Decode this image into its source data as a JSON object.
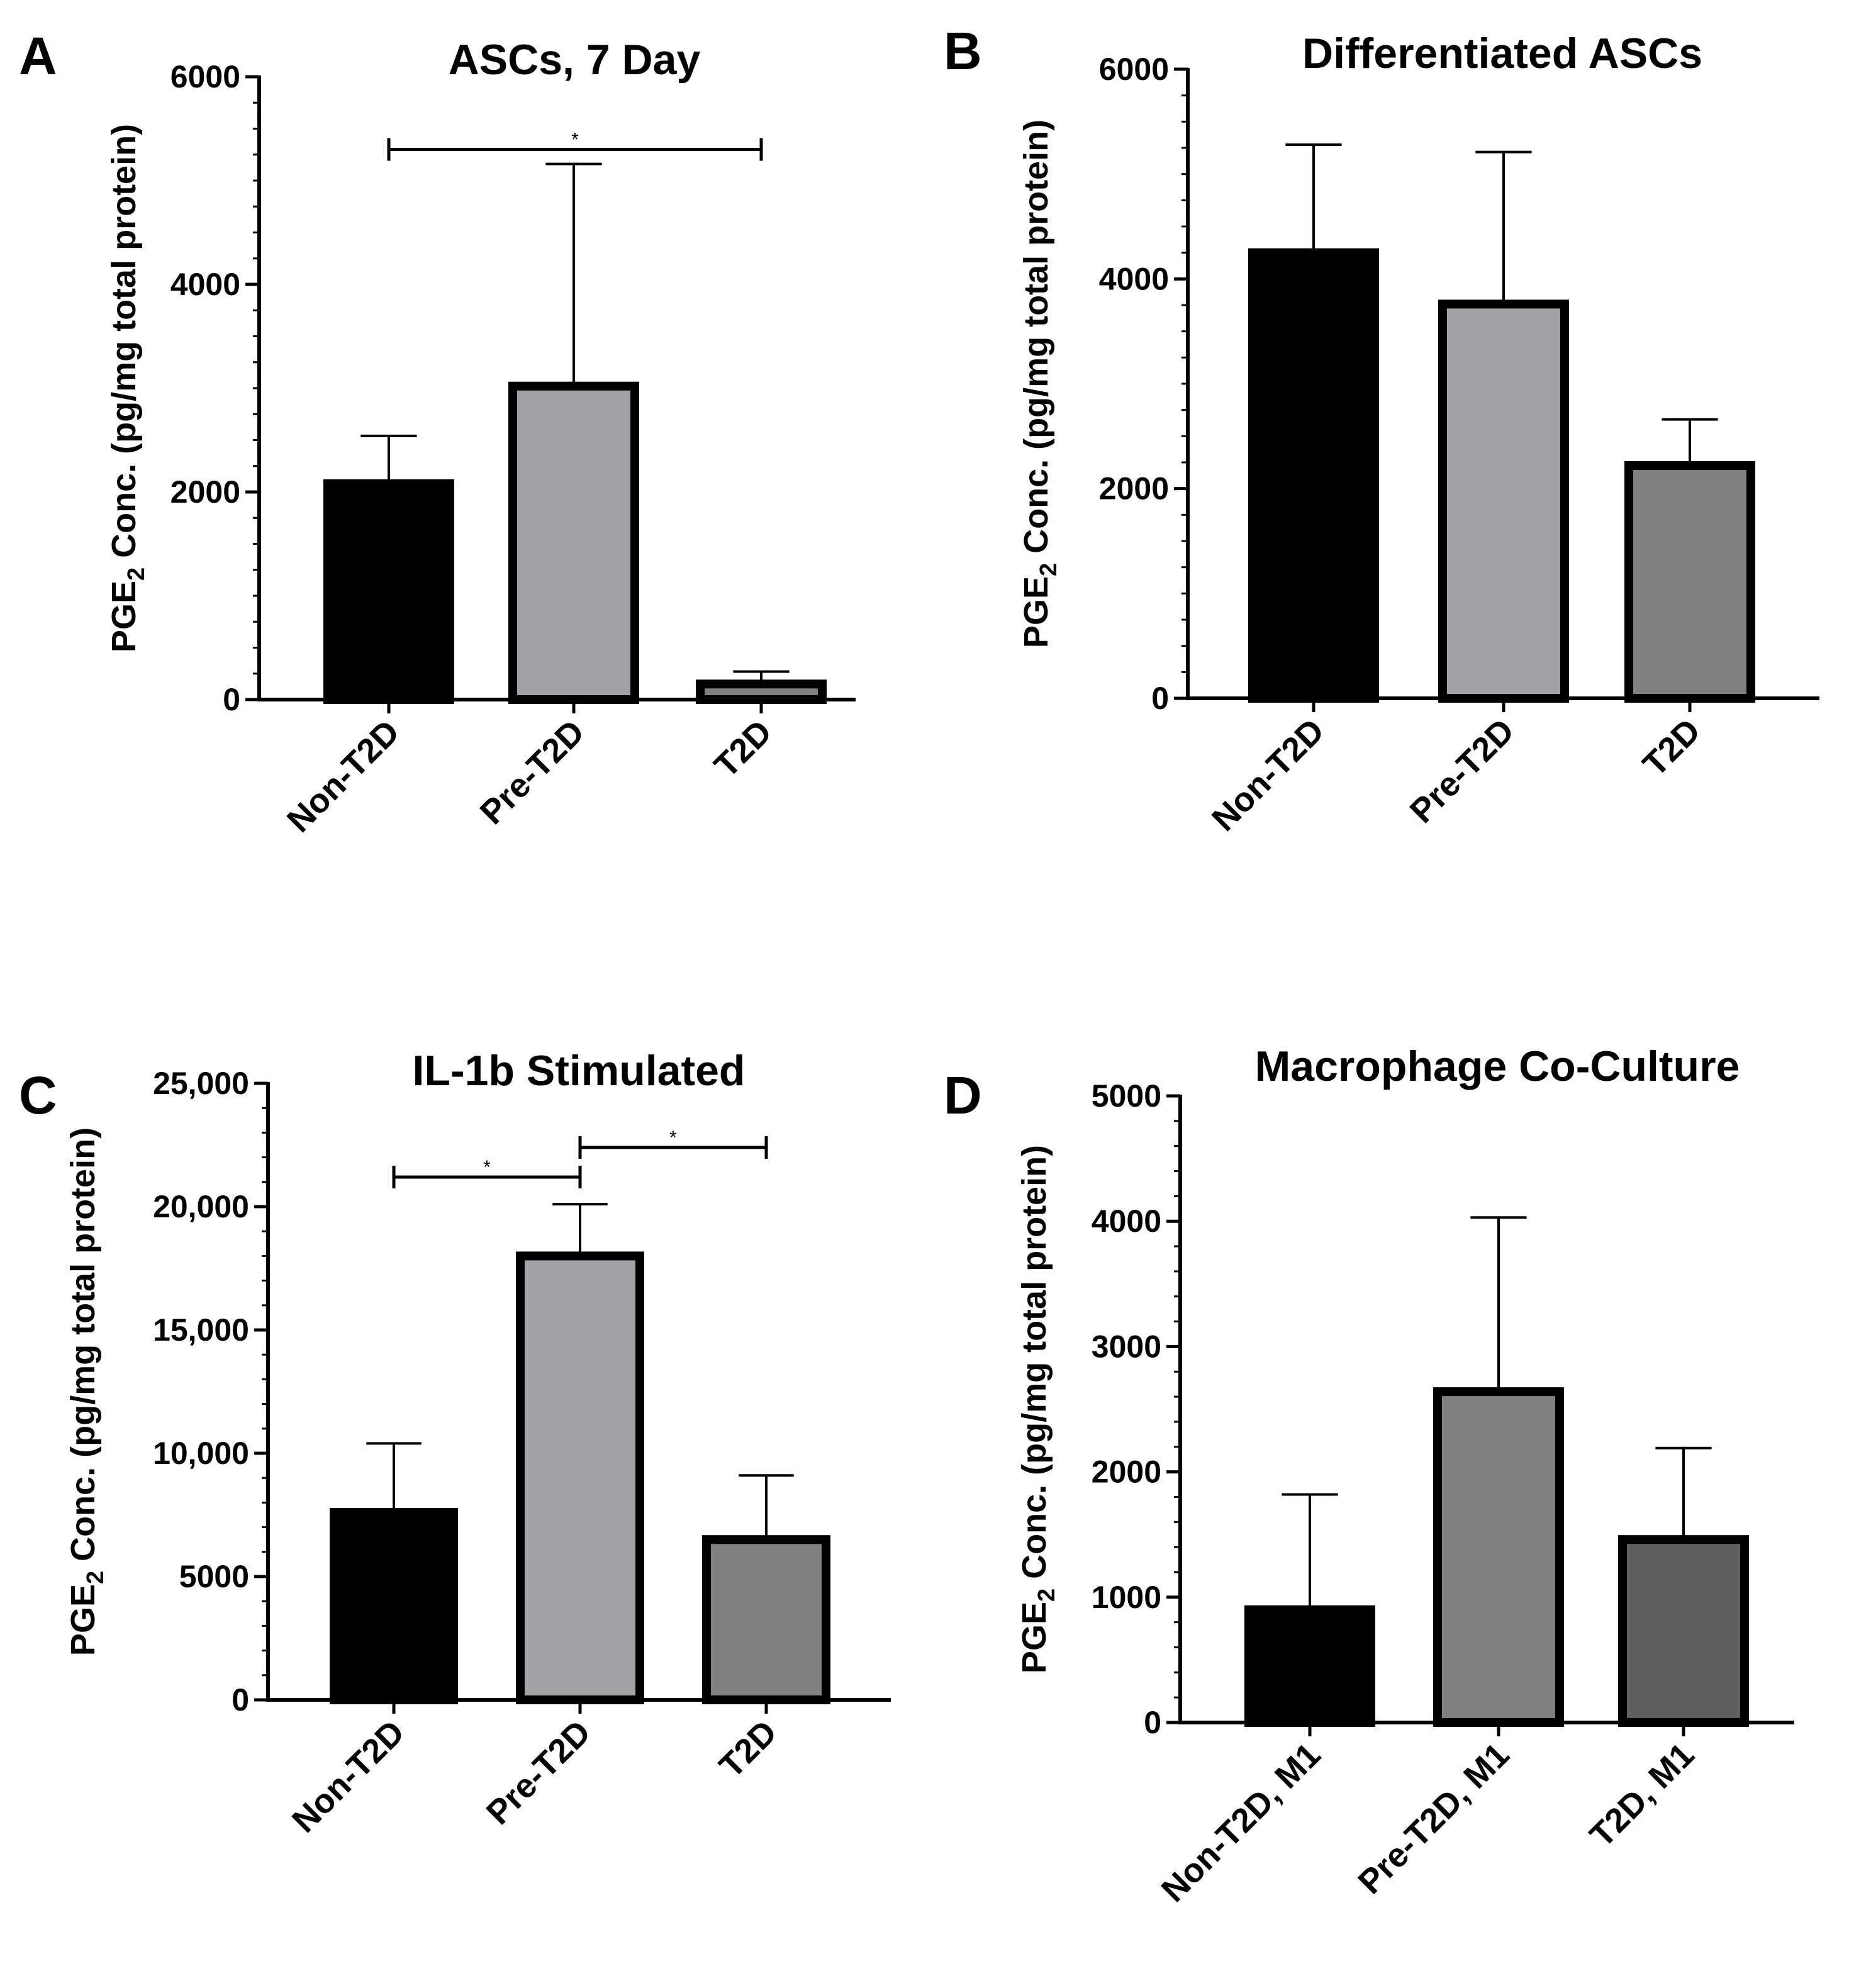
{
  "chart_data": [
    {
      "panel": "A",
      "type": "bar",
      "title": "ASCs, 7 Day",
      "ylabel_main": "PGE",
      "ylabel_sub": "2",
      "ylabel_rest": " Conc. (pg/mg total protein)",
      "categories": [
        "Non-T2D",
        "Pre-T2D",
        "T2D"
      ],
      "values": [
        2080,
        3020,
        150
      ],
      "errors": [
        460,
        2140,
        120
      ],
      "fill_colors": [
        "#000000",
        "#a2a2a6",
        "#808080"
      ],
      "ylim": [
        0,
        6000
      ],
      "ticks": [
        0,
        2000,
        4000,
        6000
      ],
      "tick_labels": [
        "0",
        "2000",
        "4000",
        "6000"
      ],
      "minor_step": 250,
      "significance": [
        {
          "from": 0,
          "to": 2,
          "y": 5300,
          "label": "*"
        }
      ]
    },
    {
      "panel": "B",
      "type": "bar",
      "title": "Differentiated ASCs",
      "ylabel_main": "PGE",
      "ylabel_sub": "2",
      "ylabel_rest": " Conc. (pg/mg total protein)",
      "categories": [
        "Non-T2D",
        "Pre-T2D",
        "T2D"
      ],
      "values": [
        4250,
        3760,
        2220
      ],
      "errors": [
        1030,
        1450,
        440
      ],
      "fill_colors": [
        "#000000",
        "#a2a2a6",
        "#808080"
      ],
      "ylim": [
        0,
        6000
      ],
      "ticks": [
        0,
        2000,
        4000,
        6000
      ],
      "tick_labels": [
        "0",
        "2000",
        "4000",
        "6000"
      ],
      "minor_step": 250,
      "significance": []
    },
    {
      "panel": "C",
      "type": "bar",
      "title": "IL-1b Stimulated",
      "ylabel_main": "PGE",
      "ylabel_sub": "2",
      "ylabel_rest": " Conc. (pg/mg total protein)",
      "categories": [
        "Non-T2D",
        "Pre-T2D",
        "T2D"
      ],
      "values": [
        7600,
        18000,
        6500
      ],
      "errors": [
        2800,
        2100,
        2600
      ],
      "fill_colors": [
        "#000000",
        "#a2a2a6",
        "#808080"
      ],
      "ylim": [
        0,
        25000
      ],
      "ticks": [
        0,
        5000,
        10000,
        15000,
        20000,
        25000
      ],
      "tick_labels": [
        "0",
        "5000",
        "10,000",
        "15,000",
        "20,000",
        "25,000"
      ],
      "minor_step": 1000,
      "significance": [
        {
          "from": 0,
          "to": 1,
          "y": 21200,
          "label": "*"
        },
        {
          "from": 1,
          "to": 2,
          "y": 22400,
          "label": "*"
        }
      ]
    },
    {
      "panel": "D",
      "type": "bar",
      "title": "Macrophage Co-Culture",
      "ylabel_main": "PGE",
      "ylabel_sub": "2",
      "ylabel_rest": " Conc. (pg/mg total protein)",
      "categories": [
        "Non-T2D, M1",
        "Pre-T2D, M1",
        "T2D, M1"
      ],
      "values": [
        900,
        2640,
        1460
      ],
      "errors": [
        920,
        1390,
        730
      ],
      "fill_colors": [
        "#000000",
        "#808080",
        "#5f5f5f"
      ],
      "ylim": [
        0,
        5000
      ],
      "ticks": [
        0,
        1000,
        2000,
        3000,
        4000,
        5000
      ],
      "tick_labels": [
        "0",
        "1000",
        "2000",
        "3000",
        "4000",
        "5000"
      ],
      "minor_step": 200,
      "significance": []
    }
  ]
}
